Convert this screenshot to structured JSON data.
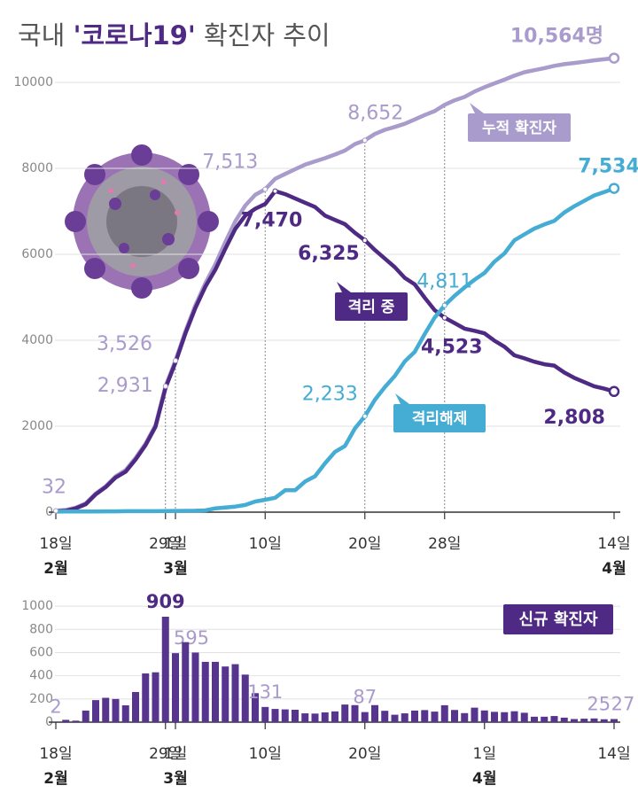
{
  "chart_data": [
    {
      "type": "line",
      "title": [
        "국내 ",
        "'코로나19'",
        " 확진자 추이"
      ],
      "categories": [
        "18일",
        null,
        null,
        null,
        null,
        null,
        null,
        null,
        null,
        null,
        null,
        "29일",
        "1일",
        null,
        null,
        null,
        null,
        null,
        null,
        null,
        null,
        "10일",
        null,
        null,
        null,
        null,
        null,
        null,
        null,
        null,
        null,
        "20일",
        null,
        null,
        null,
        null,
        null,
        null,
        null,
        "28일",
        null,
        null,
        null,
        null,
        null,
        null,
        null,
        null,
        null,
        null,
        null,
        null,
        null,
        null,
        null,
        null,
        "14일"
      ],
      "months": [
        "2월",
        null,
        null,
        null,
        null,
        null,
        null,
        null,
        null,
        null,
        null,
        null,
        "3월",
        null,
        null,
        null,
        null,
        null,
        null,
        null,
        null,
        null,
        null,
        null,
        null,
        null,
        null,
        null,
        null,
        null,
        null,
        null,
        null,
        null,
        null,
        null,
        null,
        null,
        null,
        null,
        null,
        null,
        null,
        null,
        null,
        null,
        null,
        null,
        null,
        null,
        null,
        null,
        null,
        null,
        null,
        null,
        "4월"
      ],
      "series": [
        {
          "name": "누적 확진자",
          "color": "#a99bcb",
          "values": [
            32,
            51,
            104,
            204,
            433,
            602,
            833,
            977,
            1261,
            1595,
            2022,
            2931,
            3526,
            4212,
            4812,
            5328,
            5766,
            6284,
            6767,
            7134,
            7382,
            7513,
            7755,
            7869,
            7979,
            8086,
            8162,
            8236,
            8320,
            8413,
            8565,
            8652,
            8799,
            8897,
            8961,
            9037,
            9137,
            9241,
            9332,
            9478,
            9583,
            9661,
            9786,
            9887,
            9976,
            10062,
            10156,
            10237,
            10284,
            10331,
            10384,
            10423,
            10450,
            10480,
            10512,
            10537,
            10564
          ],
          "value_labels": [
            "32",
            null,
            null,
            null,
            null,
            null,
            null,
            null,
            null,
            null,
            null,
            "2,931",
            "3,526",
            null,
            null,
            null,
            null,
            null,
            null,
            null,
            null,
            "7,513",
            null,
            null,
            null,
            null,
            null,
            null,
            null,
            null,
            null,
            "8,652",
            null,
            null,
            null,
            null,
            null,
            null,
            null,
            null,
            null,
            null,
            null,
            null,
            null,
            null,
            null,
            null,
            null,
            null,
            null,
            null,
            null,
            null,
            null,
            null,
            "10,564명"
          ]
        },
        {
          "name": "격리 중",
          "color": "#4e2a84",
          "values": [
            20,
            30,
            88,
            186,
            415,
            584,
            806,
            943,
            1225,
            1560,
            1990,
            2890,
            3480,
            4160,
            4750,
            5250,
            5640,
            6130,
            6590,
            6900,
            7060,
            7170,
            7470,
            7400,
            7300,
            7200,
            7100,
            6900,
            6800,
            6700,
            6500,
            6325,
            6100,
            5900,
            5700,
            5450,
            5300,
            4990,
            4700,
            4523,
            4400,
            4270,
            4220,
            4160,
            3990,
            3850,
            3650,
            3580,
            3500,
            3440,
            3410,
            3250,
            3125,
            3026,
            2930,
            2873,
            2808
          ],
          "value_labels": [
            null,
            null,
            null,
            null,
            null,
            null,
            null,
            null,
            null,
            null,
            null,
            null,
            null,
            null,
            null,
            null,
            null,
            null,
            null,
            null,
            null,
            null,
            "7,470",
            null,
            null,
            null,
            null,
            null,
            null,
            null,
            null,
            "6,325",
            null,
            null,
            null,
            null,
            null,
            null,
            null,
            "4,523",
            null,
            null,
            null,
            null,
            null,
            null,
            null,
            null,
            null,
            null,
            null,
            null,
            null,
            null,
            null,
            null,
            "2,808"
          ]
        },
        {
          "name": "격리해제",
          "color": "#45acd3",
          "values": [
            12,
            16,
            16,
            16,
            16,
            18,
            18,
            22,
            22,
            22,
            22,
            26,
            28,
            30,
            34,
            41,
            88,
            108,
            130,
            166,
            247,
            288,
            333,
            510,
            510,
            714,
            834,
            1137,
            1401,
            1540,
            1947,
            2233,
            2612,
            2909,
            3166,
            3507,
            3730,
            4144,
            4528,
            4811,
            5033,
            5228,
            5408,
            5567,
            5828,
            6021,
            6325,
            6463,
            6598,
            6694,
            6776,
            6973,
            7117,
            7243,
            7368,
            7447,
            7534
          ],
          "value_labels": [
            null,
            null,
            null,
            null,
            null,
            null,
            null,
            null,
            null,
            null,
            null,
            null,
            null,
            null,
            null,
            null,
            null,
            null,
            null,
            null,
            null,
            null,
            null,
            null,
            null,
            null,
            null,
            null,
            null,
            null,
            null,
            "2,233",
            null,
            null,
            null,
            null,
            null,
            null,
            null,
            "4,811",
            null,
            null,
            null,
            null,
            null,
            null,
            null,
            null,
            null,
            null,
            null,
            null,
            null,
            null,
            null,
            null,
            "7,534"
          ]
        }
      ],
      "ylim": [
        0,
        10700
      ],
      "yticks": [
        0,
        2000,
        4000,
        6000,
        8000,
        10000
      ],
      "grid": true
    },
    {
      "type": "bar",
      "title": "신규 확진자",
      "categories": [
        "18일",
        null,
        null,
        null,
        null,
        null,
        null,
        null,
        null,
        null,
        null,
        "29일",
        "1일",
        null,
        null,
        null,
        null,
        null,
        null,
        null,
        null,
        "10일",
        null,
        null,
        null,
        null,
        null,
        null,
        null,
        null,
        null,
        "20일",
        null,
        null,
        null,
        null,
        null,
        null,
        null,
        null,
        null,
        null,
        null,
        "1일",
        null,
        null,
        null,
        null,
        null,
        null,
        null,
        null,
        null,
        null,
        null,
        null,
        "14일"
      ],
      "months": [
        "2월",
        null,
        null,
        null,
        null,
        null,
        null,
        null,
        null,
        null,
        null,
        null,
        "3월",
        null,
        null,
        null,
        null,
        null,
        null,
        null,
        null,
        null,
        null,
        null,
        null,
        null,
        null,
        null,
        null,
        null,
        null,
        null,
        null,
        null,
        null,
        null,
        null,
        null,
        null,
        null,
        null,
        null,
        null,
        "4월",
        null,
        null,
        null,
        null,
        null,
        null,
        null,
        null,
        null,
        null,
        null,
        null,
        null
      ],
      "values": [
        2,
        20,
        13,
        100,
        190,
        210,
        200,
        145,
        260,
        420,
        430,
        909,
        595,
        690,
        600,
        520,
        520,
        480,
        500,
        410,
        250,
        131,
        114,
        110,
        107,
        76,
        74,
        84,
        93,
        152,
        147,
        87,
        147,
        98,
        64,
        76,
        100,
        104,
        91,
        146,
        105,
        78,
        125,
        101,
        89,
        86,
        94,
        81,
        47,
        47,
        53,
        39,
        27,
        30,
        32,
        25,
        27
      ],
      "value_labels": [
        "2",
        null,
        null,
        null,
        null,
        null,
        null,
        null,
        null,
        null,
        null,
        "909",
        "595",
        null,
        null,
        null,
        null,
        null,
        null,
        null,
        null,
        "131",
        null,
        null,
        null,
        null,
        null,
        null,
        null,
        null,
        null,
        "87",
        null,
        null,
        null,
        null,
        null,
        null,
        null,
        null,
        null,
        null,
        null,
        null,
        null,
        null,
        null,
        null,
        null,
        null,
        null,
        null,
        null,
        null,
        null,
        "25",
        "27"
      ],
      "color": "#57358f",
      "ylim": [
        0,
        1100
      ],
      "yticks": [
        0,
        200,
        400,
        600,
        800,
        1000
      ],
      "grid": true
    }
  ]
}
